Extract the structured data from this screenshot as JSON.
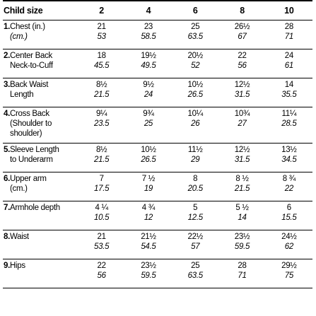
{
  "table": {
    "header": {
      "label": "Child size",
      "sizes": [
        "2",
        "4",
        "6",
        "8",
        "10"
      ]
    },
    "rows": [
      {
        "num": "1.",
        "label_line1": "Chest (in.)",
        "label_line2": "(cm.)",
        "label_line2_italic": true,
        "in": [
          "21",
          "23",
          "25",
          "26½",
          "28"
        ],
        "cm": [
          "53",
          "58.5",
          "63.5",
          "67",
          "71"
        ]
      },
      {
        "num": "2.",
        "label_line1": "Center Back",
        "label_line2": "Neck-to-Cuff",
        "in": [
          "18",
          "19½",
          "20½",
          "22",
          "24"
        ],
        "cm": [
          "45.5",
          "49.5",
          "52",
          "56",
          "61"
        ]
      },
      {
        "num": "3.",
        "label_line1": "Back Waist",
        "label_line2": "Length",
        "in": [
          "8½",
          "9½",
          "10½",
          "12½",
          "14"
        ],
        "cm": [
          "21.5",
          "24",
          "26.5",
          "31.5",
          "35.5"
        ]
      },
      {
        "num": "4.",
        "label_line1": "Cross Back",
        "label_line2": "(Shoulder to\nshoulder)",
        "in": [
          "9¼",
          "9¾",
          "10¼",
          "10¾",
          "11¼"
        ],
        "cm": [
          "23.5",
          "25",
          "26",
          "27",
          "28.5"
        ]
      },
      {
        "num": "5.",
        "label_line1": "Sleeve Length",
        "label_line2": "to Underarm",
        "in": [
          "8½",
          "10½",
          "11½",
          "12½",
          "13½"
        ],
        "cm": [
          "21.5",
          "26.5",
          "29",
          "31.5",
          "34.5"
        ]
      },
      {
        "num": "6.",
        "label_line1": "Upper arm",
        "label_line2": "(cm.)",
        "in": [
          "7",
          "7 ½",
          "8",
          "8 ½",
          "8 ¾"
        ],
        "cm": [
          "17.5",
          "19",
          "20.5",
          "21.5",
          "22"
        ]
      },
      {
        "num": "7.",
        "label_line1": "Armhole depth",
        "label_line2": "",
        "in": [
          "4 ¼",
          "4 ¾",
          "5",
          "5 ½",
          "6"
        ],
        "cm": [
          "10.5",
          "12",
          "12.5",
          "14",
          "15.5"
        ]
      },
      {
        "num": "8.",
        "label_line1": "Waist",
        "label_line2": "",
        "in": [
          "21",
          "21½",
          "22½",
          "23½",
          "24½"
        ],
        "cm": [
          "53.5",
          "54.5",
          "57",
          "59.5",
          "62"
        ]
      },
      {
        "num": "9.",
        "label_line1": "Hips",
        "label_line2": "",
        "in": [
          "22",
          "23½",
          "25",
          "28",
          "29½"
        ],
        "cm": [
          "56",
          "59.5",
          "63.5",
          "71",
          "75"
        ]
      }
    ]
  }
}
